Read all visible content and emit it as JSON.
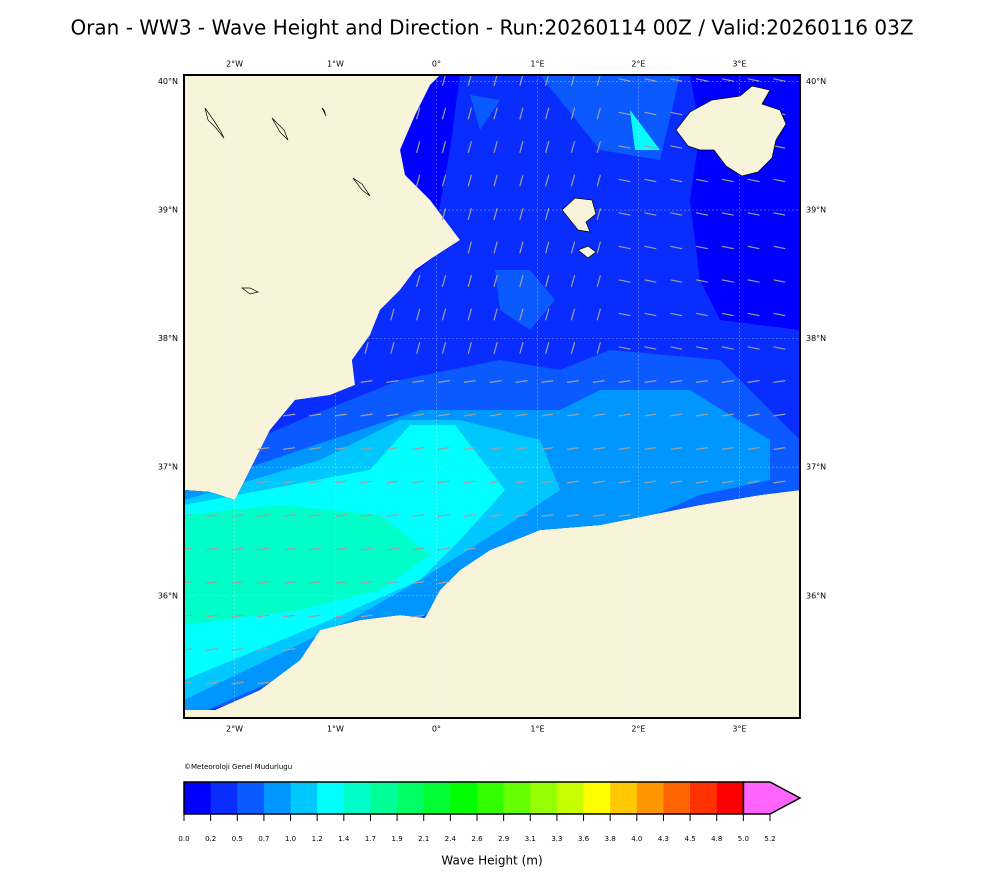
{
  "title": "Oran - WW3 - Wave Height and Direction - Run:20260114 00Z / Valid:20260116 03Z",
  "map": {
    "lonlim": [
      -2.5,
      3.6
    ],
    "latlim": [
      35.05,
      40.05
    ],
    "lonticks": [
      {
        "value": -2,
        "label": "2°W"
      },
      {
        "value": -1,
        "label": "1°W"
      },
      {
        "value": 0,
        "label": "0°"
      },
      {
        "value": 1,
        "label": "1°E"
      },
      {
        "value": 2,
        "label": "2°E"
      },
      {
        "value": 3,
        "label": "3°E"
      }
    ],
    "latticks": [
      {
        "value": 40,
        "label": "40°N"
      },
      {
        "value": 39,
        "label": "39°N"
      },
      {
        "value": 38,
        "label": "38°N"
      },
      {
        "value": 37,
        "label": "37°N"
      },
      {
        "value": 36,
        "label": "36°N"
      }
    ]
  },
  "copyright": "©Meteoroloji Genel Mudurlugu",
  "colorbar": {
    "label": "Wave Height (m)",
    "ticks": [
      {
        "value": 0,
        "label": "0.0"
      },
      0.2,
      0.5,
      0.7,
      {
        "value": 1,
        "label": "1.0"
      },
      1.2,
      1.4,
      1.7,
      1.9,
      2.1,
      2.4,
      2.6,
      2.9,
      3.1,
      3.3,
      3.6,
      3.8,
      {
        "value": 4,
        "label": "4.0"
      },
      4.3,
      4.5,
      4.8,
      {
        "value": 5,
        "label": "5.0"
      },
      5.2
    ],
    "colors": [
      "#0000ff",
      "#0a2dff",
      "#0a5aff",
      "#0096ff",
      "#00c8ff",
      "#00ffff",
      "#00ffc8",
      "#00ff96",
      "#00ff64",
      "#00ff32",
      "#00ff00",
      "#32ff00",
      "#64ff00",
      "#96ff00",
      "#c8ff00",
      "#ffff00",
      "#ffc800",
      "#ff9600",
      "#ff6400",
      "#ff3200",
      "#ff0000",
      "#ff64ff"
    ]
  }
}
